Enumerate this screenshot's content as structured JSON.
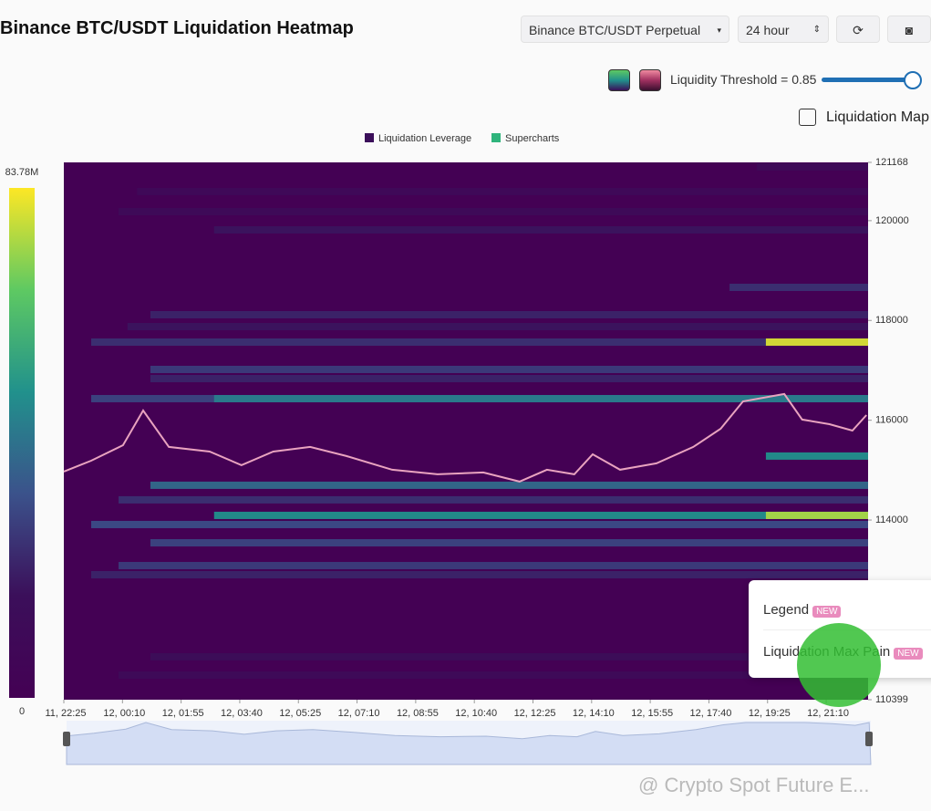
{
  "header": {
    "title": "Binance BTC/USDT Liquidation Heatmap",
    "exchange_select": "Binance BTC/USDT Perpetual",
    "range_select": "24 hour",
    "threshold_label": "Liquidity Threshold = 0.85",
    "map_toggle": "Liquidation Map"
  },
  "menu": {
    "items": [
      {
        "label": "Legend",
        "badge": "NEW"
      },
      {
        "label": "Liquidation Max Pain",
        "badge": "NEW"
      }
    ]
  },
  "watermark": "@ Crypto Spot Future E...",
  "chart_data": {
    "type": "heatmap",
    "xlim": [
      0,
      1440
    ],
    "xticks": [
      {
        "value": 0,
        "label": "11, 22:25"
      },
      {
        "value": 105,
        "label": "12, 00:10"
      },
      {
        "value": 210,
        "label": "12, 01:55"
      },
      {
        "value": 315,
        "label": "12, 03:40"
      },
      {
        "value": 420,
        "label": "12, 05:25"
      },
      {
        "value": 525,
        "label": "12, 07:10"
      },
      {
        "value": 630,
        "label": "12, 08:55"
      },
      {
        "value": 735,
        "label": "12, 10:40"
      },
      {
        "value": 840,
        "label": "12, 12:25"
      },
      {
        "value": 945,
        "label": "12, 14:10"
      },
      {
        "value": 1050,
        "label": "12, 15:55"
      },
      {
        "value": 1155,
        "label": "12, 17:40"
      },
      {
        "value": 1260,
        "label": "12, 19:25"
      },
      {
        "value": 1365,
        "label": "12, 21:10"
      }
    ],
    "ylim": [
      110399,
      121168
    ],
    "yticks": [
      110399,
      114000,
      116000,
      118000,
      120000,
      121168
    ],
    "colorbar": {
      "range": [
        0,
        83780000
      ],
      "ticks": [
        0,
        {
          "value": 83780000,
          "label": "83.78M"
        }
      ]
    },
    "series": [
      {
        "name": "Liquidation Leverage",
        "color": "#3b0f5a",
        "y": [
          121077,
          120583,
          120180,
          119815,
          118663,
          118115,
          117877,
          117566,
          117566,
          117018,
          116835,
          116433,
          116433,
          115282,
          114697,
          114405,
          114093,
          114093,
          113910,
          113544,
          113087,
          112904,
          111259,
          110893
        ],
        "x": [
          1241,
          131,
          98,
          269,
          1192,
          155,
          114,
          49,
          1257,
          155,
          155,
          49,
          269,
          1257,
          155,
          98,
          269,
          1257,
          49,
          155,
          98,
          49,
          155,
          98
        ],
        "values": [
          12000000,
          10000000,
          12000000,
          18000000,
          25000000,
          22000000,
          18000000,
          25000000,
          80000000,
          28000000,
          22000000,
          30000000,
          45000000,
          50000000,
          40000000,
          25000000,
          50000000,
          75000000,
          32000000,
          30000000,
          28000000,
          22000000,
          15000000,
          12000000
        ]
      },
      {
        "name": "Supercharts",
        "color": "#2fb47c",
        "x": [
          0,
          49,
          106,
          142,
          188,
          261,
          318,
          375,
          441,
          506,
          588,
          669,
          751,
          816,
          865,
          914,
          947,
          996,
          1061,
          1127,
          1176,
          1216,
          1290,
          1322,
          1371,
          1412,
          1437
        ],
        "values": [
          114971,
          115190,
          115500,
          116195,
          115465,
          115373,
          115100,
          115373,
          115465,
          115282,
          115008,
          114916,
          114953,
          114770,
          115008,
          114916,
          115318,
          115008,
          115136,
          115465,
          115830,
          116378,
          116525,
          116013,
          115921,
          115793,
          116104
        ]
      }
    ]
  }
}
